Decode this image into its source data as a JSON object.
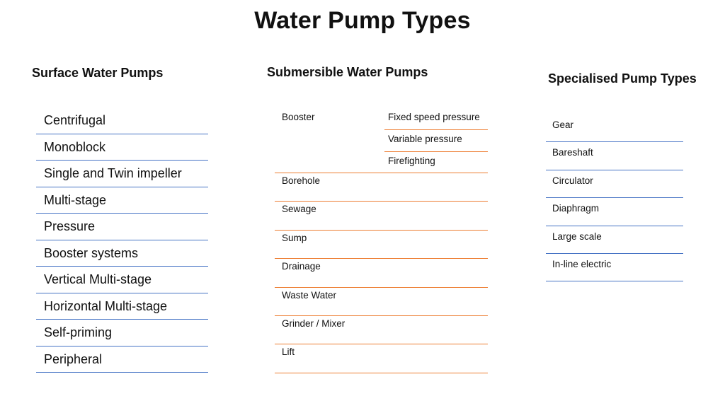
{
  "title": "Water Pump Types",
  "surface": {
    "heading": "Surface Water Pumps",
    "items": [
      "Centrifugal",
      "Monoblock",
      "Single and Twin impeller",
      "Multi-stage",
      "Pressure",
      "Booster systems",
      "Vertical Multi-stage",
      "Horizontal Multi-stage",
      "Self-priming",
      "Peripheral"
    ]
  },
  "submersible": {
    "heading": "Submersible Water Pumps",
    "booster": {
      "label": "Booster",
      "subtypes": [
        "Fixed speed pressure",
        "Variable pressure",
        "Firefighting"
      ]
    },
    "items": [
      "Borehole",
      "Sewage",
      "Sump",
      "Drainage",
      "Waste Water",
      "Grinder / Mixer",
      "Lift"
    ]
  },
  "specialised": {
    "heading": "Specialised Pump Types",
    "items": [
      "Gear",
      "Bareshaft",
      "Circulator",
      "Diaphragm",
      "Large scale",
      "In-line electric"
    ]
  },
  "colors": {
    "surface_line": "#4472c4",
    "submersible_line": "#ed7d31",
    "specialised_line": "#4472c4"
  }
}
